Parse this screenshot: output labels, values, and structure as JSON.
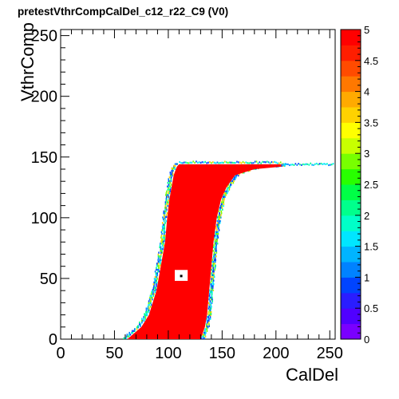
{
  "title": "pretestVthrCompCalDel_c12_r22_C9 (V0)",
  "chart_data": {
    "type": "heatmap",
    "title": "pretestVthrCompCalDel_c12_r22_C9 (V0)",
    "xlabel": "CalDel",
    "ylabel": "VthrComp",
    "xlim": [
      0,
      255
    ],
    "ylim": [
      0,
      255
    ],
    "x_ticks": [
      "0",
      "50",
      "100",
      "150",
      "200",
      "250"
    ],
    "y_ticks": [
      "0",
      "50",
      "100",
      "150",
      "200",
      "250"
    ],
    "zlim": [
      0,
      5
    ],
    "z_ticks": [
      "0",
      "0.5",
      "1",
      "1.5",
      "2",
      "2.5",
      "3",
      "3.5",
      "4",
      "4.5",
      "5"
    ],
    "palette": [
      "#7a00ff",
      "#5000ff",
      "#2a1dff",
      "#0044ff",
      "#0082ff",
      "#00b4ff",
      "#00e6ff",
      "#00ffc8",
      "#00ff8c",
      "#00ff46",
      "#28ff00",
      "#78ff00",
      "#c8ff00",
      "#ffff00",
      "#ffd200",
      "#ffaa00",
      "#ff7800",
      "#ff4b00",
      "#ff1e00",
      "#ff0000"
    ],
    "region_value": 5,
    "region_boundary": [
      {
        "vthr": 0,
        "caldel_min": 62,
        "caldel_max": 130
      },
      {
        "vthr": 10,
        "caldel_min": 75,
        "caldel_max": 134
      },
      {
        "vthr": 20,
        "caldel_min": 82,
        "caldel_max": 136
      },
      {
        "vthr": 40,
        "caldel_min": 89,
        "caldel_max": 138
      },
      {
        "vthr": 60,
        "caldel_min": 93,
        "caldel_max": 140
      },
      {
        "vthr": 80,
        "caldel_min": 97,
        "caldel_max": 142
      },
      {
        "vthr": 100,
        "caldel_min": 99,
        "caldel_max": 145
      },
      {
        "vthr": 115,
        "caldel_min": 101,
        "caldel_max": 149
      },
      {
        "vthr": 125,
        "caldel_min": 103,
        "caldel_max": 154
      },
      {
        "vthr": 135,
        "caldel_min": 105,
        "caldel_max": 162
      },
      {
        "vthr": 140,
        "caldel_min": 107,
        "caldel_max": 180
      },
      {
        "vthr": 142,
        "caldel_min": 108,
        "caldel_max": 205
      },
      {
        "vthr": 144,
        "caldel_min": 110,
        "caldel_max": 205
      }
    ],
    "tail": {
      "vthr": 143,
      "caldel_from": 205,
      "caldel_to": 253,
      "value": 1.5
    },
    "hole": {
      "caldel": [
        106,
        118
      ],
      "vthr": [
        48,
        57
      ]
    },
    "marker": {
      "caldel": 112,
      "vthr": 52
    }
  }
}
